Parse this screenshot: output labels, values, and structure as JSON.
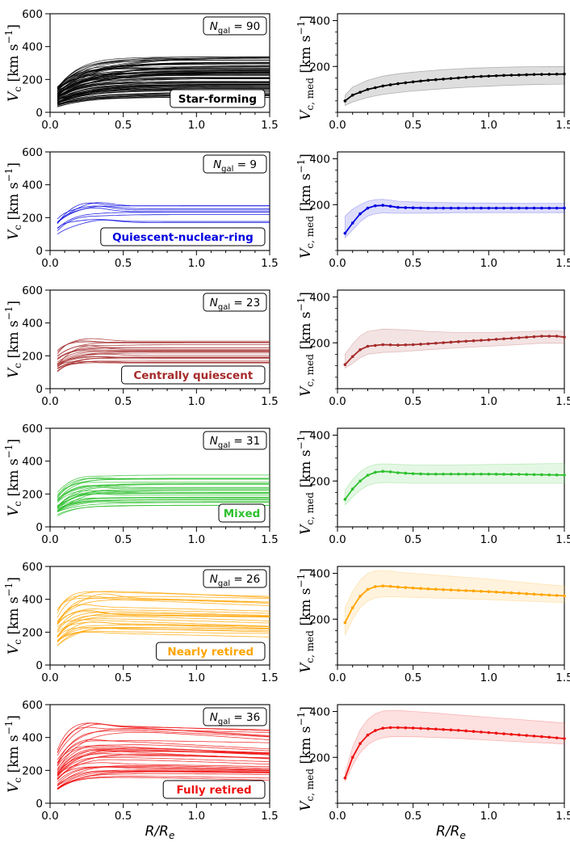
{
  "figure": {
    "x_label": "R/R",
    "x_label_sub": "e",
    "left_ylabel": {
      "v": "V",
      "sub": "c",
      "unit": "[km s",
      "sup": "−1",
      "close": "]"
    },
    "right_ylabel": {
      "v": "V",
      "sub": "c, med",
      "unit": "[km s",
      "sup": "−1",
      "close": "]"
    }
  },
  "chart_data": [
    {
      "type": "line",
      "group": "Star-forming",
      "color": "#000000",
      "n_label": "N",
      "n_sub": "gal",
      "n_value": "= 90",
      "n_count": 90,
      "xlim": [
        0,
        1.5
      ],
      "left_ylim": [
        0,
        600
      ],
      "left_yticks": [
        "0",
        "200",
        "400",
        "600"
      ],
      "right_ylim": [
        0,
        430
      ],
      "right_yticks": [
        "200",
        "400"
      ],
      "xticks": [
        "0.0",
        "0.5",
        "1.0",
        "1.5"
      ],
      "vflat_range": [
        90,
        340
      ],
      "rise_scale": 0.2,
      "peak_amp": 0.02,
      "decline": 0.0,
      "v0_frac": 0.3,
      "median": {
        "x": [
          0.05,
          0.1,
          0.2,
          0.3,
          0.4,
          0.5,
          0.6,
          0.7,
          0.8,
          0.9,
          1.0,
          1.1,
          1.2,
          1.3,
          1.4,
          1.5
        ],
        "y": [
          50,
          75,
          100,
          115,
          125,
          133,
          140,
          145,
          150,
          155,
          158,
          161,
          163,
          165,
          166,
          167
        ],
        "lo": [
          30,
          45,
          65,
          78,
          86,
          93,
          98,
          103,
          107,
          111,
          114,
          117,
          119,
          121,
          122,
          123
        ],
        "hi": [
          75,
          110,
          140,
          158,
          168,
          175,
          181,
          186,
          190,
          193,
          195,
          197,
          198,
          199,
          200,
          200
        ]
      }
    },
    {
      "type": "line",
      "group": "Quiescent-nuclear-ring",
      "color": "#0000e0",
      "n_label": "N",
      "n_sub": "gal",
      "n_value": "= 9",
      "n_count": 9,
      "xlim": [
        0,
        1.5
      ],
      "left_ylim": [
        0,
        600
      ],
      "left_yticks": [
        "0",
        "200",
        "400",
        "600"
      ],
      "right_ylim": [
        0,
        430
      ],
      "right_yticks": [
        "200",
        "400"
      ],
      "xticks": [
        "0.0",
        "0.5",
        "1.0",
        "1.5"
      ],
      "vflat_range": [
        150,
        300
      ],
      "rise_scale": 0.09,
      "peak_amp": 0.12,
      "decline": 0.0,
      "v0_frac": 0.35,
      "median": {
        "x": [
          0.05,
          0.1,
          0.15,
          0.2,
          0.25,
          0.3,
          0.35,
          0.4,
          0.5,
          0.6,
          0.8,
          1.0,
          1.2,
          1.4,
          1.5
        ],
        "y": [
          75,
          120,
          160,
          185,
          195,
          197,
          193,
          188,
          186,
          185,
          185,
          185,
          185,
          185,
          185
        ],
        "lo": [
          55,
          90,
          125,
          150,
          160,
          165,
          163,
          162,
          162,
          163,
          165,
          165,
          165,
          165,
          165
        ],
        "hi": [
          150,
          180,
          200,
          215,
          222,
          223,
          220,
          215,
          212,
          210,
          208,
          207,
          206,
          206,
          206
        ]
      }
    },
    {
      "type": "line",
      "group": "Centrally quiescent",
      "color": "#a52a2a",
      "n_label": "N",
      "n_sub": "gal",
      "n_value": "= 23",
      "n_count": 23,
      "xlim": [
        0,
        1.5
      ],
      "left_ylim": [
        0,
        600
      ],
      "left_yticks": [
        "0",
        "200",
        "400",
        "600"
      ],
      "right_ylim": [
        0,
        430
      ],
      "right_yticks": [
        "200",
        "400"
      ],
      "xticks": [
        "0.0",
        "0.5",
        "1.0",
        "1.5"
      ],
      "vflat_range": [
        150,
        300
      ],
      "rise_scale": 0.1,
      "peak_amp": 0.08,
      "decline": 0.0,
      "v0_frac": 0.45,
      "median": {
        "x": [
          0.05,
          0.1,
          0.15,
          0.2,
          0.3,
          0.4,
          0.5,
          0.6,
          0.8,
          1.0,
          1.2,
          1.35,
          1.45,
          1.5
        ],
        "y": [
          105,
          140,
          170,
          185,
          192,
          190,
          192,
          196,
          205,
          213,
          222,
          229,
          229,
          225
        ],
        "lo": [
          90,
          110,
          135,
          150,
          158,
          160,
          165,
          170,
          178,
          185,
          192,
          198,
          198,
          197
        ],
        "hi": [
          150,
          195,
          230,
          250,
          260,
          258,
          255,
          250,
          245,
          245,
          248,
          252,
          252,
          250
        ]
      }
    },
    {
      "type": "line",
      "group": "Mixed",
      "color": "#2ec02e",
      "n_label": "N",
      "n_sub": "gal",
      "n_value": "= 31",
      "n_count": 31,
      "xlim": [
        0,
        1.5
      ],
      "left_ylim": [
        0,
        600
      ],
      "left_yticks": [
        "0",
        "200",
        "400",
        "600"
      ],
      "right_ylim": [
        0,
        430
      ],
      "right_yticks": [
        "200",
        "400"
      ],
      "xticks": [
        "0.0",
        "0.5",
        "1.0",
        "1.5"
      ],
      "vflat_range": [
        130,
        320
      ],
      "rise_scale": 0.12,
      "peak_amp": 0.1,
      "decline": 0.0,
      "v0_frac": 0.35,
      "median": {
        "x": [
          0.05,
          0.1,
          0.15,
          0.2,
          0.25,
          0.3,
          0.35,
          0.4,
          0.5,
          0.6,
          0.8,
          1.0,
          1.2,
          1.4,
          1.5
        ],
        "y": [
          120,
          165,
          200,
          225,
          238,
          242,
          240,
          236,
          232,
          230,
          230,
          230,
          229,
          227,
          226
        ],
        "lo": [
          95,
          130,
          160,
          180,
          190,
          193,
          193,
          192,
          190,
          190,
          190,
          190,
          190,
          190,
          190
        ],
        "hi": [
          160,
          205,
          240,
          262,
          272,
          275,
          274,
          272,
          270,
          270,
          270,
          272,
          274,
          276,
          276
        ]
      }
    },
    {
      "type": "line",
      "group": "Nearly retired",
      "color": "#ffa500",
      "n_label": "N",
      "n_sub": "gal",
      "n_value": "= 26",
      "n_count": 26,
      "xlim": [
        0,
        1.5
      ],
      "left_ylim": [
        0,
        600
      ],
      "left_yticks": [
        "0",
        "200",
        "400",
        "600"
      ],
      "right_ylim": [
        0,
        430
      ],
      "right_yticks": [
        "200",
        "400"
      ],
      "xticks": [
        "0.0",
        "0.5",
        "1.0",
        "1.5"
      ],
      "vflat_range": [
        200,
        480
      ],
      "rise_scale": 0.1,
      "peak_amp": 0.1,
      "decline": 0.08,
      "v0_frac": 0.4,
      "median": {
        "x": [
          0.05,
          0.1,
          0.15,
          0.2,
          0.25,
          0.3,
          0.35,
          0.4,
          0.5,
          0.6,
          0.8,
          1.0,
          1.2,
          1.4,
          1.5
        ],
        "y": [
          185,
          250,
          300,
          330,
          342,
          345,
          343,
          340,
          336,
          332,
          326,
          320,
          313,
          305,
          302
        ],
        "lo": [
          130,
          200,
          250,
          280,
          293,
          297,
          298,
          297,
          295,
          293,
          290,
          285,
          280,
          275,
          272
        ],
        "hi": [
          250,
          320,
          370,
          400,
          410,
          412,
          410,
          405,
          400,
          395,
          385,
          375,
          362,
          350,
          345
        ]
      }
    },
    {
      "type": "line",
      "group": "Fully retired",
      "color": "#ee1111",
      "n_label": "N",
      "n_sub": "gal",
      "n_value": "= 36",
      "n_count": 36,
      "xlim": [
        0,
        1.5
      ],
      "left_ylim": [
        0,
        600
      ],
      "left_yticks": [
        "0",
        "200",
        "400",
        "600"
      ],
      "right_ylim": [
        0,
        430
      ],
      "right_yticks": [
        "200",
        "400"
      ],
      "xticks": [
        "0.0",
        "0.5",
        "1.0",
        "1.5"
      ],
      "vflat_range": [
        160,
        500
      ],
      "rise_scale": 0.13,
      "peak_amp": 0.08,
      "decline": 0.1,
      "v0_frac": 0.3,
      "median": {
        "x": [
          0.05,
          0.1,
          0.15,
          0.2,
          0.25,
          0.3,
          0.35,
          0.4,
          0.5,
          0.6,
          0.8,
          1.0,
          1.2,
          1.4,
          1.5
        ],
        "y": [
          110,
          200,
          260,
          297,
          317,
          327,
          330,
          330,
          328,
          325,
          318,
          308,
          298,
          288,
          282
        ],
        "lo": [
          95,
          165,
          220,
          255,
          275,
          285,
          290,
          290,
          290,
          288,
          283,
          275,
          268,
          262,
          258
        ],
        "hi": [
          130,
          245,
          320,
          365,
          390,
          402,
          405,
          405,
          400,
          396,
          385,
          375,
          365,
          355,
          350
        ]
      }
    }
  ]
}
